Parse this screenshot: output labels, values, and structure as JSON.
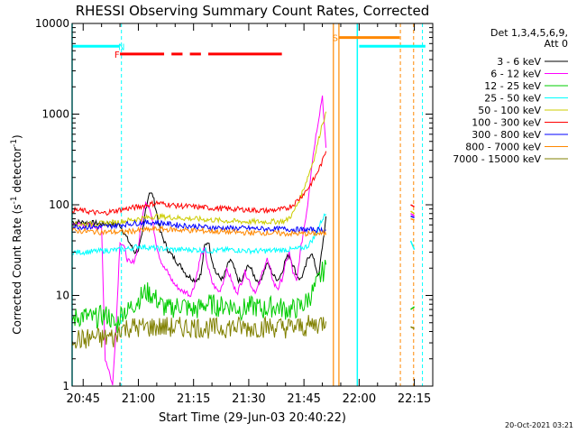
{
  "chart_data": {
    "type": "line",
    "title": "RHESSI Observing Summary Count Rates, Corrected",
    "xlabel": "Start Time (29-Jun-03 20:40:22)",
    "ylabel": "Corrected Count Rate (s⁻¹ detector⁻¹)",
    "ylabel_parts": [
      "Corrected Count Rate (s",
      "-1",
      " detector",
      "-1",
      ")"
    ],
    "x_units": "minutes since 20:40",
    "x_ticks": [
      5,
      20,
      35,
      50,
      65,
      80,
      95
    ],
    "x_tick_labels": [
      "20:45",
      "21:00",
      "21:15",
      "21:30",
      "21:45",
      "22:00",
      "22:15"
    ],
    "xlim": [
      2,
      100
    ],
    "y_scale": "log",
    "ylim": [
      1,
      10000
    ],
    "y_ticks": [
      1,
      10,
      100,
      1000,
      10000
    ],
    "y_tick_labels": [
      "1",
      "10",
      "100",
      "1000",
      "10000"
    ],
    "legend_title": "Det 1,3,4,5,6,9,",
    "legend_subtitle": "Att 0",
    "legend_position": "right",
    "timestamp": "20-Oct-2021 03:21",
    "series": [
      {
        "name": "3 - 6 keV",
        "color": "#000000",
        "x": [
          2,
          5,
          10,
          15,
          17,
          19,
          20,
          21,
          22,
          23,
          24,
          25,
          26,
          27,
          28,
          29,
          30,
          31,
          32,
          33,
          34,
          35,
          36,
          37,
          38,
          39,
          40,
          41,
          42,
          43,
          44,
          45,
          46,
          47,
          48,
          49,
          50,
          51,
          52,
          53,
          54,
          55,
          56,
          57,
          58,
          59,
          60,
          61,
          62,
          63,
          64,
          65,
          66,
          67,
          68,
          69,
          70,
          71
        ],
        "y": [
          65,
          64,
          62,
          60,
          42,
          30,
          32,
          45,
          90,
          140,
          125,
          80,
          50,
          40,
          32,
          28,
          25,
          22,
          20,
          17,
          16,
          15,
          15,
          17,
          35,
          40,
          25,
          18,
          16,
          15,
          20,
          25,
          20,
          15,
          14,
          18,
          22,
          18,
          15,
          14,
          18,
          23,
          19,
          16,
          15,
          18,
          25,
          28,
          22,
          17,
          15,
          18,
          25,
          30,
          22,
          16,
          35,
          70
        ]
      },
      {
        "name": "6 - 12 keV",
        "color": "#ff00ff",
        "x": [
          2,
          8,
          10,
          11,
          12,
          13,
          14,
          15,
          16,
          17,
          18,
          19,
          20,
          21,
          22,
          23,
          24,
          25,
          26,
          27,
          28,
          29,
          30,
          31,
          32,
          33,
          34,
          35,
          36,
          37,
          38,
          39,
          40,
          41,
          42,
          43,
          44,
          45,
          46,
          47,
          48,
          49,
          50,
          51,
          52,
          53,
          54,
          55,
          56,
          57,
          58,
          59,
          60,
          61,
          62,
          63,
          64,
          65,
          66,
          67,
          68,
          69,
          70,
          71
        ],
        "y": [
          62,
          58,
          55,
          2,
          1.5,
          1,
          5,
          40,
          35,
          25,
          22,
          25,
          35,
          70,
          110,
          95,
          60,
          35,
          25,
          20,
          18,
          15,
          13,
          12,
          11,
          11,
          10,
          12,
          18,
          28,
          32,
          20,
          14,
          12,
          11,
          14,
          19,
          16,
          12,
          11,
          14,
          18,
          15,
          12,
          11,
          14,
          20,
          25,
          18,
          13,
          12,
          15,
          22,
          30,
          18,
          14,
          30,
          55,
          100,
          250,
          500,
          900,
          1600,
          400
        ]
      },
      {
        "name": "12 - 25 keV",
        "color": "#00cc00",
        "x": [
          2,
          5,
          8,
          10,
          12,
          13,
          14,
          15,
          16,
          17,
          18,
          20,
          22,
          24,
          26,
          28,
          30,
          32,
          34,
          36,
          38,
          40,
          42,
          44,
          46,
          48,
          50,
          52,
          54,
          56,
          58,
          60,
          62,
          64,
          65,
          66,
          68,
          70,
          71
        ],
        "y": [
          5.5,
          6,
          5.5,
          6,
          6,
          5,
          4.5,
          6,
          7,
          6.5,
          7.5,
          9,
          11,
          10,
          8,
          7,
          7.5,
          8,
          7,
          7,
          8,
          8,
          7.5,
          8,
          7.5,
          7,
          7.5,
          7.5,
          7,
          7.5,
          7.5,
          7,
          7,
          7.5,
          8,
          9,
          12,
          18,
          20
        ]
      },
      {
        "name": "25 - 50 keV",
        "color": "#00ffff",
        "x": [
          2,
          5,
          10,
          15,
          18,
          20,
          25,
          30,
          35,
          40,
          45,
          50,
          55,
          60,
          62,
          64,
          66,
          68,
          70,
          71
        ],
        "y": [
          30,
          30,
          31,
          32,
          33,
          35,
          33,
          32,
          32,
          31,
          32,
          31,
          31,
          32,
          32,
          33,
          35,
          45,
          70,
          80
        ]
      },
      {
        "name": "50 - 100 keV",
        "color": "#cccc00",
        "x": [
          2,
          5,
          10,
          15,
          18,
          20,
          25,
          30,
          35,
          40,
          45,
          50,
          55,
          60,
          62,
          64,
          66,
          68,
          70,
          71
        ],
        "y": [
          60,
          61,
          62,
          65,
          68,
          70,
          75,
          72,
          70,
          68,
          66,
          65,
          65,
          66,
          80,
          120,
          200,
          350,
          800,
          1000
        ]
      },
      {
        "name": "100 - 300 keV",
        "color": "#ff0000",
        "x": [
          2,
          5,
          10,
          15,
          18,
          20,
          25,
          30,
          35,
          40,
          45,
          50,
          55,
          60,
          62,
          64,
          66,
          68,
          70,
          71
        ],
        "y": [
          88,
          86,
          80,
          88,
          92,
          95,
          105,
          98,
          95,
          92,
          90,
          88,
          86,
          90,
          100,
          120,
          150,
          200,
          300,
          400
        ]
      },
      {
        "name": "300 - 800 keV",
        "color": "#0000ff",
        "x": [
          2,
          5,
          10,
          15,
          18,
          20,
          25,
          30,
          35,
          40,
          45,
          50,
          55,
          60,
          65,
          70,
          71
        ],
        "y": [
          58,
          57,
          57,
          60,
          62,
          63,
          64,
          60,
          58,
          56,
          55,
          55,
          54,
          54,
          53,
          53,
          52
        ]
      },
      {
        "name": "800 - 7000 keV",
        "color": "#ff8800",
        "x": [
          2,
          5,
          10,
          15,
          20,
          25,
          30,
          35,
          40,
          45,
          50,
          55,
          60,
          65,
          70,
          71
        ],
        "y": [
          52,
          51,
          50,
          50,
          52,
          54,
          53,
          52,
          51,
          50,
          49,
          49,
          48,
          48,
          48,
          48
        ]
      },
      {
        "name": "7000 - 15000 keV",
        "color": "#808000",
        "x": [
          2,
          5,
          8,
          10,
          12,
          14,
          15,
          16,
          18,
          20,
          25,
          30,
          35,
          40,
          45,
          50,
          55,
          60,
          65,
          70,
          71
        ],
        "y": [
          3.5,
          3.2,
          3.5,
          3.3,
          3.5,
          3.3,
          4.5,
          4.3,
          4.5,
          4.4,
          4.5,
          4.4,
          4.5,
          4.3,
          4.5,
          4.4,
          4.5,
          4.4,
          4.5,
          5,
          5.5
        ]
      }
    ],
    "annotations": [
      {
        "text": "N",
        "x": 15.4,
        "y": 5600,
        "color": "#00ffff"
      },
      {
        "text": "F",
        "x": 14.2,
        "y": 4600,
        "color": "#ff0000"
      },
      {
        "text": "S",
        "x": 73.5,
        "y": 7000,
        "color": "#ff8800"
      }
    ],
    "markers": {
      "night_bars": [
        {
          "x0": 2,
          "x1": 14.8,
          "y": 5600,
          "color": "#00ffff"
        },
        {
          "x0": 80,
          "x1": 98,
          "y": 5600,
          "color": "#00ffff"
        }
      ],
      "flare_segments": [
        [
          15,
          27
        ],
        [
          29,
          32
        ],
        [
          34,
          37
        ],
        [
          39,
          59
        ]
      ],
      "flare_y": 4600,
      "flare_color": "#ff0000",
      "saa_bar": {
        "x0": 74.5,
        "x1": 91,
        "y": 7000,
        "color": "#ff8800"
      },
      "cyan_solid_lines": [
        2,
        79.5
      ],
      "cyan_dashed_lines": [
        15.4,
        97.2
      ],
      "orange_solid_lines": [
        73,
        74.5
      ],
      "orange_dashed_lines": [
        91.2,
        94.8
      ]
    },
    "late_segments": [
      {
        "color": "#ff0000",
        "x": [
          94,
          95
        ],
        "y": [
          100,
          95
        ]
      },
      {
        "color": "#0000ff",
        "x": [
          94,
          95
        ],
        "y": [
          75,
          72
        ]
      },
      {
        "color": "#ff8800",
        "x": [
          94,
          95
        ],
        "y": [
          70,
          68
        ]
      },
      {
        "color": "#ff00ff",
        "x": [
          94,
          95
        ],
        "y": [
          80,
          75
        ]
      },
      {
        "color": "#cccc00",
        "x": [
          94,
          95
        ],
        "y": [
          85,
          80
        ]
      },
      {
        "color": "#00cc00",
        "x": [
          94,
          95
        ],
        "y": [
          7,
          7.5
        ]
      },
      {
        "color": "#808000",
        "x": [
          94,
          95
        ],
        "y": [
          4.5,
          4.3
        ]
      },
      {
        "color": "#00ffff",
        "x": [
          94,
          95
        ],
        "y": [
          40,
          32
        ]
      }
    ]
  }
}
